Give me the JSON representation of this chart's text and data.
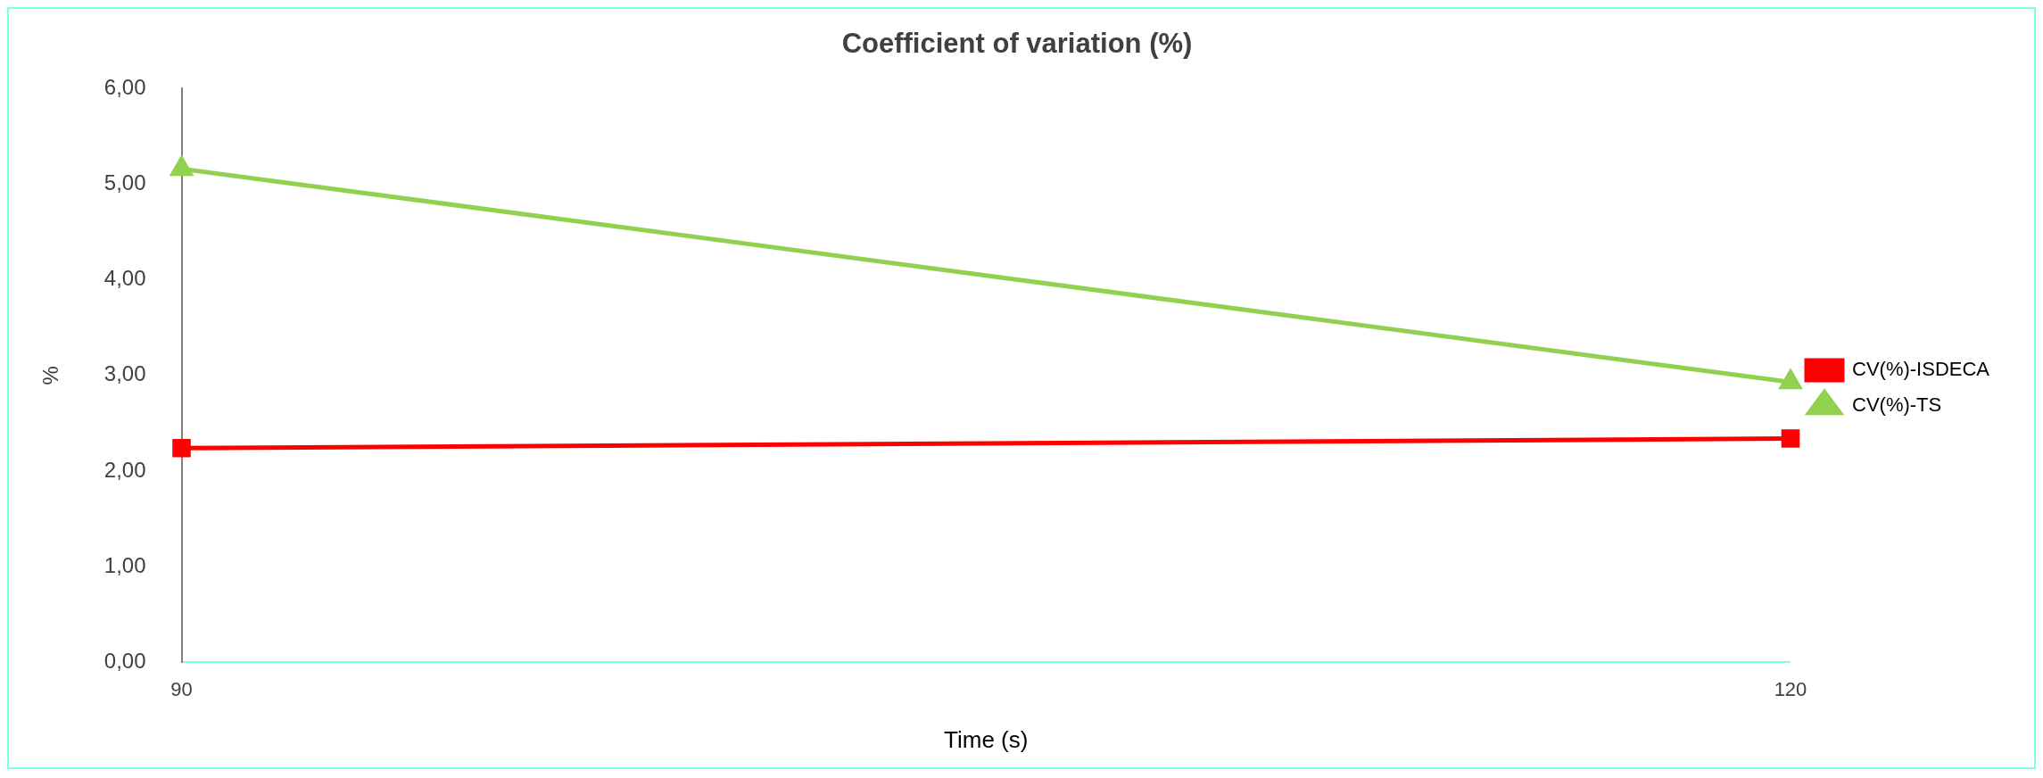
{
  "chart_data": {
    "type": "line",
    "title": "Coefficient of variation (%)",
    "xlabel": "Time (s)",
    "ylabel": "%",
    "categories": [
      "90",
      "120"
    ],
    "series": [
      {
        "name": "CV(%)-ISDECA",
        "color": "#ff0000",
        "marker": "square",
        "values": [
          2.24,
          2.34
        ]
      },
      {
        "name": "CV(%)-TS",
        "color": "#92d050",
        "marker": "triangle",
        "values": [
          5.16,
          2.93
        ]
      }
    ],
    "ylim": [
      0,
      6
    ],
    "yticks": [
      {
        "value": 0,
        "label": "0,00"
      },
      {
        "value": 1,
        "label": "1,00"
      },
      {
        "value": 2,
        "label": "2,00"
      },
      {
        "value": 3,
        "label": "3,00"
      },
      {
        "value": 4,
        "label": "4,00"
      },
      {
        "value": 5,
        "label": "5,00"
      },
      {
        "value": 6,
        "label": "6,00"
      }
    ],
    "grid": false,
    "legend": "right"
  }
}
